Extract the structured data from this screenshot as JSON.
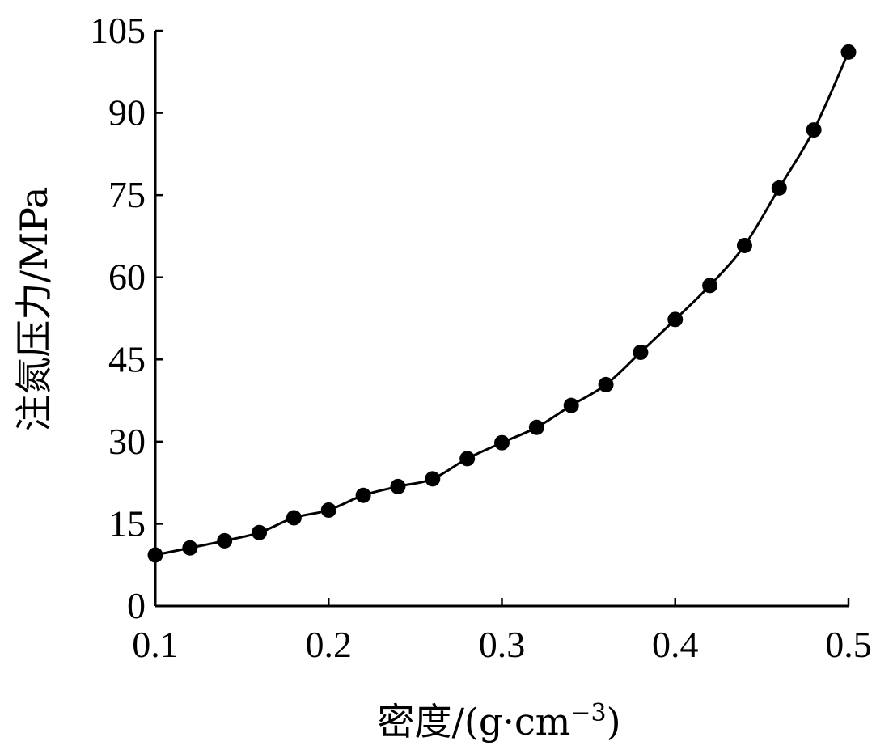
{
  "chart_data": {
    "type": "line",
    "title": "",
    "xlabel": "密度/(g·cm",
    "xlabel_sup": "−3",
    "xlabel_suffix": ")",
    "ylabel": "注氮压力/MPa",
    "xlim": [
      0.1,
      0.5
    ],
    "ylim": [
      0,
      105
    ],
    "x_ticks": [
      0.1,
      0.2,
      0.3,
      0.4,
      0.5
    ],
    "x_tick_labels": [
      "0.1",
      "0.2",
      "0.3",
      "0.4",
      "0.5"
    ],
    "y_ticks": [
      0,
      15,
      30,
      45,
      60,
      75,
      90,
      105
    ],
    "y_tick_labels": [
      "0",
      "15",
      "30",
      "45",
      "60",
      "75",
      "90",
      "105"
    ],
    "grid": false,
    "legend": "none",
    "marker_color": "#000000",
    "line_color": "#000000",
    "series": [
      {
        "x": [
          0.1,
          0.12,
          0.14,
          0.16,
          0.18,
          0.2,
          0.22,
          0.24,
          0.26,
          0.28,
          0.3,
          0.32,
          0.34,
          0.36,
          0.38,
          0.4,
          0.42,
          0.44,
          0.46,
          0.48,
          0.5
        ],
        "y": [
          9.3,
          10.6,
          11.9,
          13.4,
          16.1,
          17.5,
          20.2,
          21.8,
          23.2,
          26.9,
          29.8,
          32.6,
          36.6,
          40.4,
          46.3,
          52.3,
          58.5,
          65.8,
          76.3,
          86.9,
          101.1
        ]
      }
    ]
  }
}
